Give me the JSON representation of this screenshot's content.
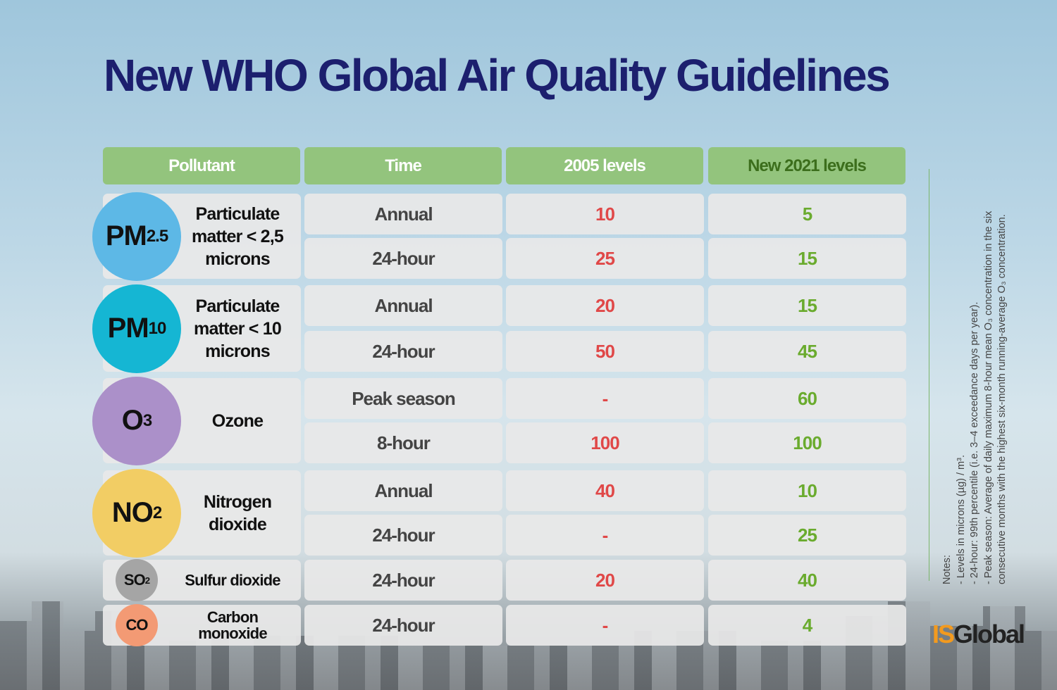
{
  "title": "New WHO Global Air Quality Guidelines",
  "headers": [
    "Pollutant",
    "Time",
    "2005 levels",
    "New 2021 levels"
  ],
  "colors": {
    "header": "#93c47d",
    "old": "#e04848",
    "new": "#6aab2e",
    "title": "#1c1f6e"
  },
  "pollutants": [
    {
      "symbol": "PM",
      "sub": "2.5",
      "name": "Particulate matter < 2,5 microns",
      "color": "#5db8e6",
      "rows": [
        {
          "time": "Annual",
          "old": "10",
          "new": "5"
        },
        {
          "time": "24-hour",
          "old": "25",
          "new": "15"
        }
      ]
    },
    {
      "symbol": "PM",
      "sub": "10",
      "name": "Particulate matter < 10 microns",
      "color": "#15b6d3",
      "rows": [
        {
          "time": "Annual",
          "old": "20",
          "new": "15"
        },
        {
          "time": "24-hour",
          "old": "50",
          "new": "45"
        }
      ]
    },
    {
      "symbol": "O",
      "sub": "3",
      "name": "Ozone",
      "color": "#ab90c9",
      "rows": [
        {
          "time": "Peak season",
          "old": "-",
          "new": "60"
        },
        {
          "time": "8-hour",
          "old": "100",
          "new": "100"
        }
      ]
    },
    {
      "symbol": "NO",
      "sub": "2",
      "name": "Nitrogen dioxide",
      "color": "#f2cd64",
      "rows": [
        {
          "time": "Annual",
          "old": "40",
          "new": "10"
        },
        {
          "time": "24-hour",
          "old": "-",
          "new": "25"
        }
      ]
    },
    {
      "symbol": "SO",
      "sub": "2",
      "name": "Sulfur dioxide",
      "color": "#a5a5a5",
      "rows": [
        {
          "time": "24-hour",
          "old": "20",
          "new": "40"
        }
      ]
    },
    {
      "symbol": "CO",
      "sub": "",
      "name": "Carbon monoxide",
      "color": "#f39a74",
      "rows": [
        {
          "time": "24-hour",
          "old": "-",
          "new": "4"
        }
      ]
    }
  ],
  "notes": [
    "Notes:",
    "- Levels in microns (µg) / m³.",
    "- 24-hour: 99th percentile (i.e. 3–4 exceedance days per year).",
    "- Peak season: Average of daily maximum 8-hour mean O₃ concentration in the six consecutive months with the highest six-month running-average O₃ concentration."
  ],
  "logo": {
    "part1": "IS",
    "part2": "Global"
  }
}
